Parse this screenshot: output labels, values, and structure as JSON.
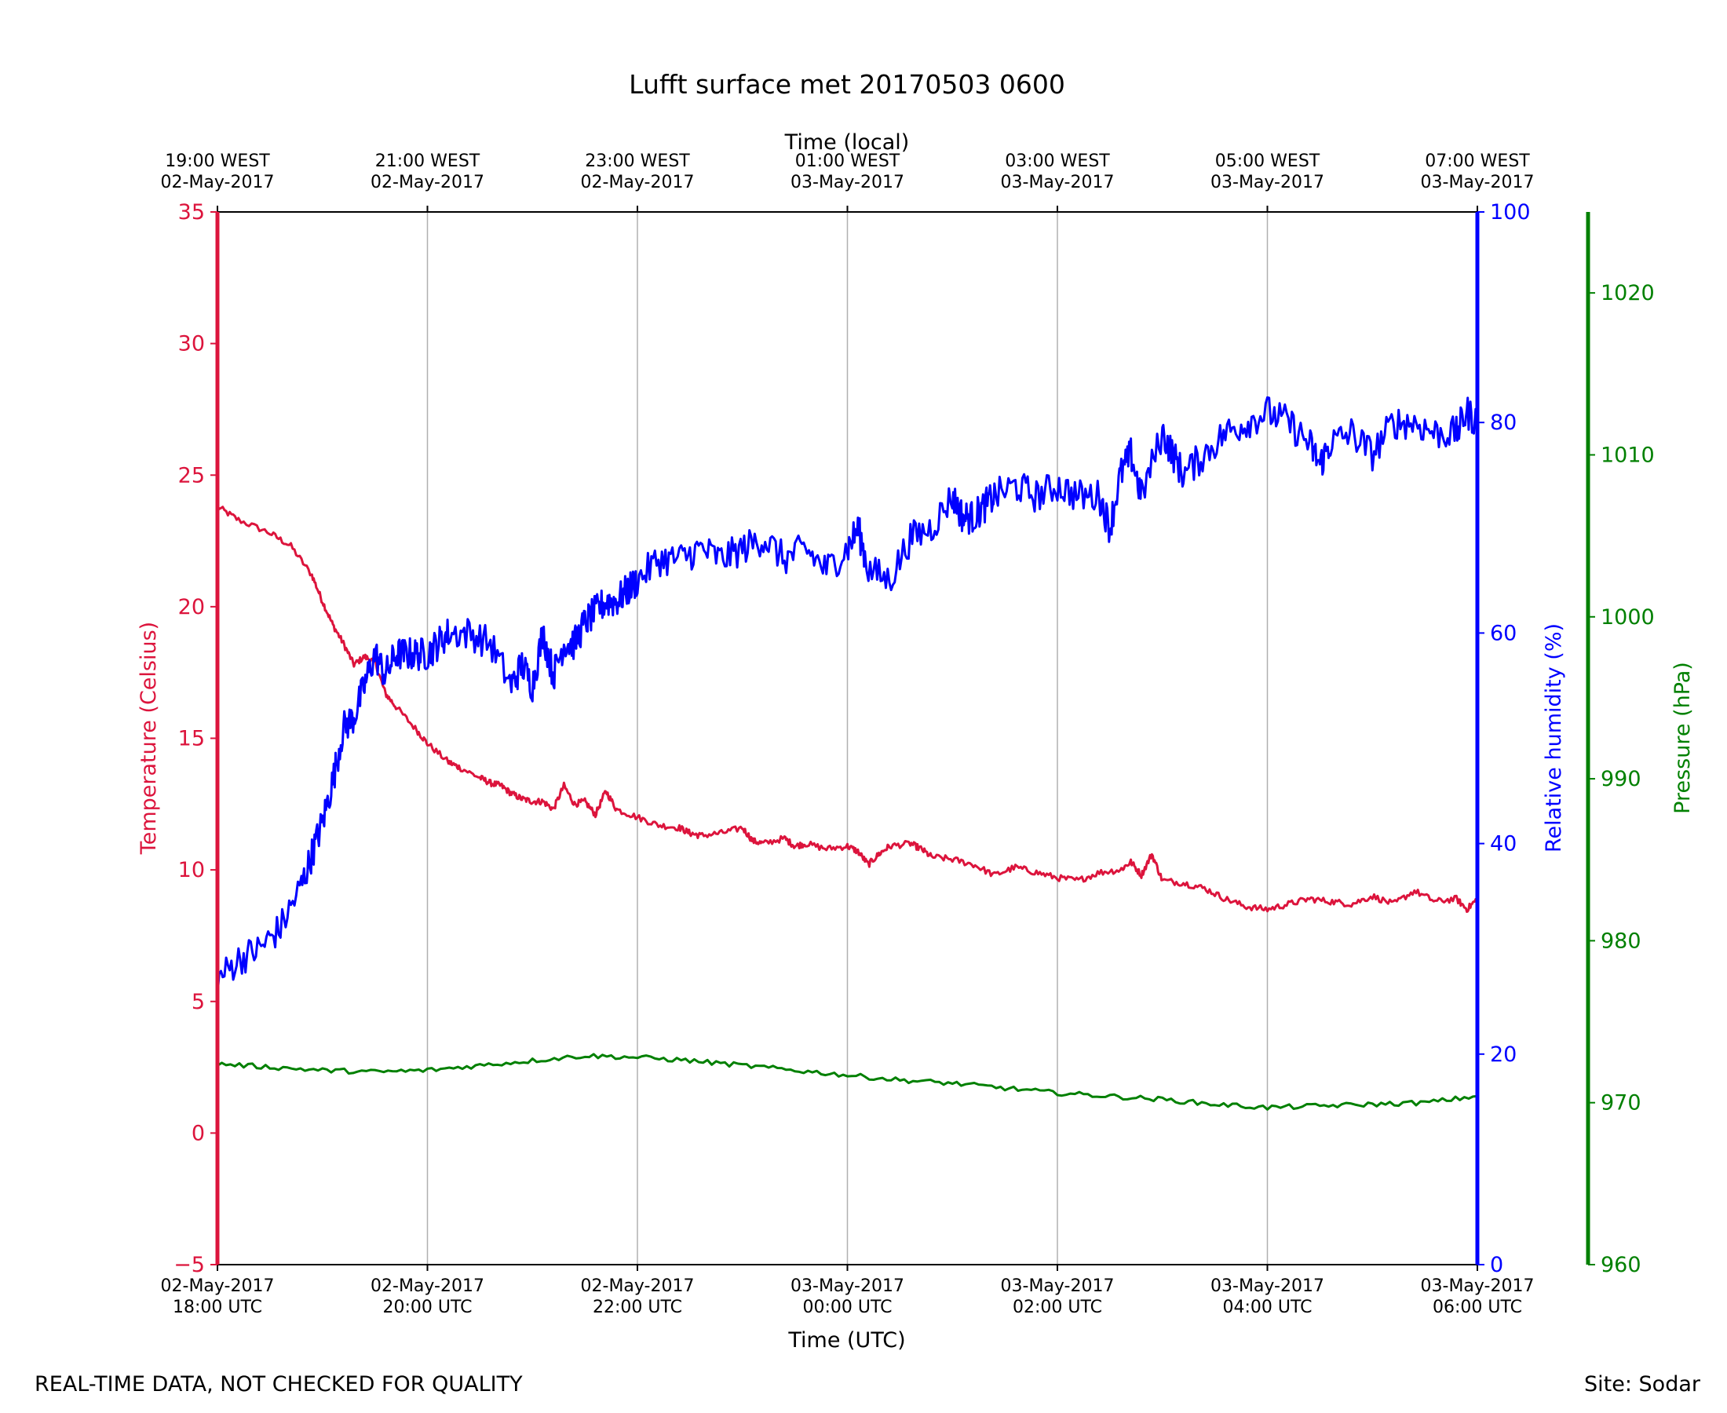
{
  "footer": {
    "left_note": "REAL-TIME DATA, NOT CHECKED FOR QUALITY",
    "right_note": "Site: Sodar"
  },
  "colors": {
    "temperature": "#dc143c",
    "humidity": "#0000ff",
    "pressure": "#008000",
    "grid": "#b0b0b0",
    "axis": "#000000"
  },
  "chart_data": {
    "type": "line",
    "title": "Lufft surface met 20170503 0600",
    "xlabel": "Time (UTC)",
    "xlabel_top": "Time (local)",
    "xlim_hours_utc": [
      0,
      12
    ],
    "x_unit": "hours since 02-May-2017 18:00 UTC",
    "bottom_ticks": [
      {
        "x": 0,
        "line1": "02-May-2017",
        "line2": "18:00 UTC"
      },
      {
        "x": 2,
        "line1": "02-May-2017",
        "line2": "20:00 UTC"
      },
      {
        "x": 4,
        "line1": "02-May-2017",
        "line2": "22:00 UTC"
      },
      {
        "x": 6,
        "line1": "03-May-2017",
        "line2": "00:00 UTC"
      },
      {
        "x": 8,
        "line1": "03-May-2017",
        "line2": "02:00 UTC"
      },
      {
        "x": 10,
        "line1": "03-May-2017",
        "line2": "04:00 UTC"
      },
      {
        "x": 12,
        "line1": "03-May-2017",
        "line2": "06:00 UTC"
      }
    ],
    "top_ticks": [
      {
        "x": 0,
        "line1": "19:00 WEST",
        "line2": "02-May-2017"
      },
      {
        "x": 2,
        "line1": "21:00 WEST",
        "line2": "02-May-2017"
      },
      {
        "x": 4,
        "line1": "23:00 WEST",
        "line2": "02-May-2017"
      },
      {
        "x": 6,
        "line1": "01:00 WEST",
        "line2": "03-May-2017"
      },
      {
        "x": 8,
        "line1": "03:00 WEST",
        "line2": "03-May-2017"
      },
      {
        "x": 10,
        "line1": "05:00 WEST",
        "line2": "03-May-2017"
      },
      {
        "x": 12,
        "line1": "07:00 WEST",
        "line2": "03-May-2017"
      }
    ],
    "grid": "vertical",
    "axes": {
      "temperature": {
        "label": "Temperature (Celsius)",
        "ylim": [
          -5,
          35
        ],
        "ticks": [
          -5,
          0,
          5,
          10,
          15,
          20,
          25,
          30,
          35
        ],
        "tick_labels": [
          "−5",
          "0",
          "5",
          "10",
          "15",
          "20",
          "25",
          "30",
          "35"
        ]
      },
      "humidity": {
        "label": "Relative humidity (%)",
        "ylim": [
          0,
          100
        ],
        "ticks": [
          0,
          20,
          40,
          60,
          80,
          100
        ],
        "tick_labels": [
          "0",
          "20",
          "40",
          "60",
          "80",
          "100"
        ]
      },
      "pressure": {
        "label": "Pressure (hPa)",
        "ylim": [
          960,
          1025
        ],
        "ticks": [
          960,
          970,
          980,
          990,
          1000,
          1010,
          1020
        ],
        "tick_labels": [
          "960",
          "970",
          "980",
          "990",
          "1000",
          "1010",
          "1020"
        ]
      }
    },
    "series": [
      {
        "name": "Temperature",
        "axis": "temperature",
        "x": [
          0,
          0.2,
          0.5,
          0.7,
          0.9,
          1.0,
          1.1,
          1.2,
          1.3,
          1.4,
          1.5,
          1.6,
          1.7,
          1.9,
          2.0,
          2.2,
          2.3,
          2.5,
          2.6,
          2.7,
          2.8,
          2.9,
          3.0,
          3.1,
          3.2,
          3.3,
          3.4,
          3.5,
          3.6,
          3.7,
          3.8,
          4.0,
          4.2,
          4.4,
          4.5,
          4.6,
          4.8,
          5.0,
          5.1,
          5.2,
          5.4,
          5.5,
          5.6,
          5.8,
          6.0,
          6.1,
          6.2,
          6.3,
          6.4,
          6.6,
          6.7,
          6.8,
          7.0,
          7.2,
          7.4,
          7.6,
          7.8,
          8.0,
          8.2,
          8.4,
          8.6,
          8.7,
          8.8,
          8.9,
          9.0,
          9.2,
          9.4,
          9.6,
          9.8,
          10.0,
          10.2,
          10.4,
          10.6,
          10.8,
          11.0,
          11.2,
          11.4,
          11.6,
          11.8,
          11.9,
          12.0
        ],
        "values": [
          23.8,
          23.3,
          22.8,
          22.3,
          21.2,
          20.2,
          19.3,
          18.6,
          17.8,
          18.1,
          17.9,
          16.7,
          16.2,
          15.3,
          14.8,
          14.1,
          13.9,
          13.5,
          13.3,
          13.2,
          12.9,
          12.7,
          12.6,
          12.6,
          12.3,
          13.2,
          12.5,
          12.6,
          12.1,
          13.0,
          12.3,
          12.0,
          11.7,
          11.6,
          11.4,
          11.3,
          11.4,
          11.6,
          11.1,
          11.0,
          11.2,
          10.9,
          11.0,
          10.8,
          10.9,
          10.7,
          10.2,
          10.6,
          10.9,
          11.0,
          10.8,
          10.5,
          10.4,
          10.2,
          9.8,
          10.1,
          9.9,
          9.7,
          9.6,
          9.9,
          10.0,
          10.3,
          9.8,
          10.6,
          9.6,
          9.5,
          9.3,
          8.9,
          8.6,
          8.5,
          8.7,
          8.9,
          8.8,
          8.7,
          9.0,
          8.7,
          9.2,
          8.8,
          8.9,
          8.5,
          8.9
        ]
      },
      {
        "name": "Relative humidity",
        "axis": "humidity",
        "x": [
          0,
          0.2,
          0.4,
          0.6,
          0.8,
          0.9,
          1.0,
          1.1,
          1.2,
          1.3,
          1.4,
          1.5,
          1.6,
          1.7,
          1.8,
          1.9,
          2.0,
          2.1,
          2.2,
          2.4,
          2.6,
          2.8,
          2.9,
          3.0,
          3.1,
          3.2,
          3.3,
          3.4,
          3.5,
          3.6,
          3.7,
          3.8,
          3.9,
          4.0,
          4.2,
          4.4,
          4.6,
          4.8,
          5.0,
          5.2,
          5.4,
          5.6,
          5.8,
          6.0,
          6.1,
          6.2,
          6.4,
          6.6,
          6.8,
          7.0,
          7.1,
          7.2,
          7.3,
          7.4,
          7.6,
          7.8,
          8.0,
          8.2,
          8.4,
          8.5,
          8.6,
          8.7,
          8.8,
          9.0,
          9.1,
          9.2,
          9.4,
          9.6,
          9.8,
          10.0,
          10.2,
          10.4,
          10.5,
          10.6,
          10.8,
          11.0,
          11.2,
          11.4,
          11.6,
          11.8,
          11.9,
          12.0
        ],
        "values": [
          27,
          29,
          30,
          32,
          36,
          39,
          42,
          46,
          51,
          52,
          55,
          58,
          56,
          58,
          58,
          58,
          58,
          59,
          60,
          60,
          59,
          55,
          57,
          55,
          60,
          56,
          59,
          59,
          61,
          62,
          63,
          63,
          64,
          65,
          67,
          67,
          68,
          67,
          68,
          69,
          67,
          68,
          66,
          68,
          70,
          66,
          65,
          69,
          70,
          73,
          71,
          71,
          72,
          73,
          74,
          73,
          74,
          73,
          73,
          70,
          75,
          77,
          73,
          79,
          77,
          75,
          77,
          79,
          80,
          81,
          80,
          78,
          76,
          78,
          79,
          77,
          80,
          80,
          79,
          79,
          81,
          80
        ]
      },
      {
        "name": "Pressure",
        "axis": "pressure",
        "x": [
          0,
          0.5,
          1.0,
          1.5,
          2.0,
          2.5,
          3.0,
          3.5,
          4.0,
          4.5,
          5.0,
          5.5,
          6.0,
          6.5,
          7.0,
          7.5,
          8.0,
          8.5,
          9.0,
          9.5,
          10.0,
          10.5,
          11.0,
          11.5,
          12.0
        ],
        "values": [
          972.4,
          972.2,
          972.0,
          971.9,
          972.0,
          972.3,
          972.6,
          972.9,
          972.8,
          972.6,
          972.3,
          972.0,
          971.7,
          971.4,
          971.2,
          970.9,
          970.6,
          970.4,
          970.2,
          969.9,
          969.7,
          969.8,
          969.9,
          970.0,
          970.4
        ]
      }
    ]
  }
}
